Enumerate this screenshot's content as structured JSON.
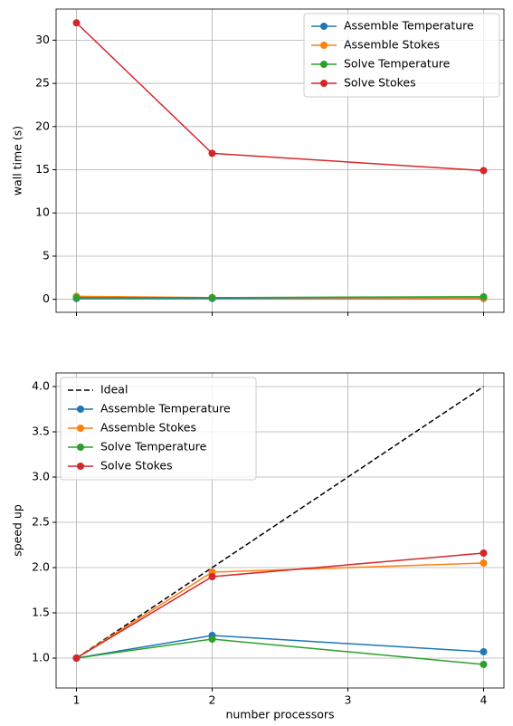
{
  "chart_data": [
    {
      "type": "line",
      "ylabel": "wall time (s)",
      "x": [
        1,
        2,
        4
      ],
      "xlim": [
        0.85,
        4.15
      ],
      "xticks": [
        1,
        2,
        3,
        4
      ],
      "ylim": [
        -1.5,
        33.6
      ],
      "yticks": [
        0,
        5,
        10,
        15,
        20,
        25,
        30
      ],
      "grid": true,
      "legend": "upper right",
      "series": [
        {
          "name": "Assemble Temperature",
          "color": "#1f77b4",
          "marker": "o",
          "linestyle": "solid",
          "values": [
            0.1,
            0.1,
            0.1
          ]
        },
        {
          "name": "Assemble Stokes",
          "color": "#ff7f0e",
          "marker": "o",
          "linestyle": "solid",
          "values": [
            0.35,
            0.2,
            0.15
          ]
        },
        {
          "name": "Solve Temperature",
          "color": "#2ca02c",
          "marker": "o",
          "linestyle": "solid",
          "values": [
            0.2,
            0.2,
            0.3
          ]
        },
        {
          "name": "Solve Stokes",
          "color": "#d62728",
          "marker": "o",
          "linestyle": "solid",
          "values": [
            32,
            16.9,
            14.9
          ]
        }
      ]
    },
    {
      "type": "line",
      "ylabel": "speed up",
      "xlabel": "number processors",
      "x": [
        1,
        2,
        4
      ],
      "xlim": [
        0.85,
        4.15
      ],
      "xticks": [
        1,
        2,
        3,
        4
      ],
      "ylim": [
        0.67,
        4.15
      ],
      "yticks": [
        {
          "value": 1,
          "label": "1.0"
        },
        1.5,
        {
          "value": 2,
          "label": "2.0"
        },
        2.5,
        {
          "value": 3,
          "label": "3.0"
        },
        3.5,
        {
          "value": 4,
          "label": "4.0"
        }
      ],
      "grid": true,
      "legend": "upper left",
      "series": [
        {
          "name": "Ideal",
          "color": "#000000",
          "marker": "none",
          "linestyle": "dashed",
          "values": [
            1,
            2,
            4
          ]
        },
        {
          "name": "Assemble Temperature",
          "color": "#1f77b4",
          "marker": "o",
          "linestyle": "solid",
          "values": [
            1,
            1.25,
            1.07
          ]
        },
        {
          "name": "Assemble Stokes",
          "color": "#ff7f0e",
          "marker": "o",
          "linestyle": "solid",
          "values": [
            1,
            1.95,
            2.05
          ]
        },
        {
          "name": "Solve Temperature",
          "color": "#2ca02c",
          "marker": "o",
          "linestyle": "solid",
          "values": [
            1,
            1.21,
            0.93
          ]
        },
        {
          "name": "Solve Stokes",
          "color": "#d62728",
          "marker": "o",
          "linestyle": "solid",
          "values": [
            1,
            1.9,
            2.16
          ]
        }
      ]
    }
  ]
}
